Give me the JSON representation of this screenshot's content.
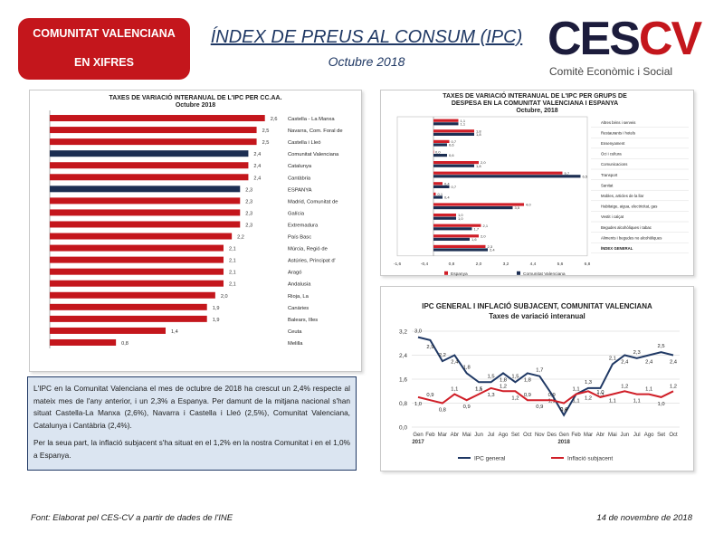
{
  "header": {
    "badge_line1": "COMUNITAT VALENCIANA",
    "badge_line2": "EN XIFRES",
    "title": "ÍNDEX DE PREUS AL CONSUM (IPC)",
    "subtitle": "Octubre 2018",
    "logo_ces": "CES",
    "logo_cv": "CV",
    "logo_tagline": "Comitè Econòmic i Social"
  },
  "colors": {
    "brand_red": "#c4161c",
    "navy": "#1c2e52",
    "blue_line": "#1f3864",
    "red_line": "#d01f28"
  },
  "chart_data": [
    {
      "type": "bar",
      "orientation": "horizontal",
      "title": "TAXES DE VARIACIÓ INTERANUAL DE L'IPC PER CC.AA.",
      "subtitle": "Octubre 2018",
      "categories": [
        "Castella - La Manxa",
        "Navarra, Com. Foral de",
        "Castella i Lleó",
        "Comunitat Valenciana",
        "Catalunya",
        "Cantàbria",
        "ESPANYA",
        "Madrid, Comunitat de",
        "Galícia",
        "Extremadura",
        "País Basc",
        "Múrcia, Regió de",
        "Astúries, Principat d'",
        "Aragó",
        "Andalusia",
        "Rioja, La",
        "Canàries",
        "Balears, Illes",
        "Ceuta",
        "Melilla"
      ],
      "values": [
        2.6,
        2.5,
        2.5,
        2.4,
        2.4,
        2.4,
        2.3,
        2.3,
        2.3,
        2.3,
        2.2,
        2.1,
        2.1,
        2.1,
        2.1,
        2.0,
        1.9,
        1.9,
        1.4,
        0.8
      ],
      "value_labels": [
        "2,6",
        "2,5",
        "2,5",
        "2,4",
        "2,4",
        "2,4",
        "2,3",
        "2,3",
        "2,3",
        "2,3",
        "2,2",
        "2,1",
        "2,1",
        "2,1",
        "2,1",
        "2,0",
        "1,9",
        "1,9",
        "1,4",
        "0,8"
      ],
      "highlight": [
        "Comunitat Valenciana",
        "ESPANYA"
      ],
      "xlim": [
        0,
        2.8
      ]
    },
    {
      "type": "bar",
      "orientation": "horizontal",
      "title": "TAXES DE VARIACIÓ INTERANUAL DE L'IPC PER GRUPS DE DESPESA EN LA COMUNITAT VALENCIANA I ESPANYA",
      "subtitle": "Octubre, 2018",
      "categories": [
        "Altres béns i serveis",
        "Restaurants i hotels",
        "Ensenyament",
        "Oci i cultura",
        "Comunicacions",
        "Transport",
        "Sanitat",
        "Mobles, articles de la llar",
        "Habitatge, aigua, electricitat, gas",
        "Vestit i calçat",
        "Begudes alcohòliques i tabac",
        "Aliments i begudes no alcohòliques",
        "ÍNDEX GENERAL"
      ],
      "series": [
        {
          "name": "Espanya",
          "color": "#d01f28",
          "values": [
            1.1,
            1.8,
            0.7,
            0.0,
            2.0,
            5.7,
            0.4,
            0.1,
            4.0,
            1.0,
            2.1,
            2.0,
            2.3
          ],
          "labels": [
            "1,1",
            "1,8",
            "0,7",
            "0,0",
            "2,0",
            "5,7",
            "0,4",
            "0,1",
            "4,0",
            "1,0",
            "2,1",
            "2,0",
            "2,3"
          ]
        },
        {
          "name": "Comunitat Valenciana",
          "color": "#1c2e52",
          "values": [
            1.1,
            1.8,
            0.6,
            0.6,
            1.8,
            6.5,
            0.7,
            0.4,
            3.5,
            1.0,
            1.7,
            1.6,
            2.4
          ],
          "labels": [
            "1,1",
            "1,8",
            "0,6",
            "0,6",
            "1,8",
            "6,5",
            "0,7",
            "0,4",
            "3,5",
            "1,0",
            "1,7",
            "1,6",
            "2,4"
          ]
        }
      ],
      "xticks": [
        "-1,6",
        "-0,4",
        "0,8",
        "2,0",
        "3,2",
        "4,4",
        "5,6",
        "6,8"
      ],
      "xlim": [
        -1.6,
        6.8
      ]
    },
    {
      "type": "line",
      "title": "IPC GENERAL I INFLACIÓ SUBJACENT, COMUNITAT VALENCIANA",
      "subtitle": "Taxes de variació interanual",
      "x": [
        "Gen",
        "Feb",
        "Mar",
        "Abr",
        "Mai",
        "Jun",
        "Jul",
        "Ago",
        "Set",
        "Oct",
        "Nov",
        "Des",
        "Gen",
        "Feb",
        "Mar",
        "Abr",
        "Mai",
        "Jun",
        "Jul",
        "Ago",
        "Set",
        "Oct"
      ],
      "year_labels": [
        "2017",
        "2018"
      ],
      "yticks": [
        "0,0",
        "0,8",
        "1,6",
        "2,4",
        "3,2"
      ],
      "ylim": [
        0,
        3.2
      ],
      "series": [
        {
          "name": "IPC general",
          "color": "#1f3864",
          "values": [
            3.0,
            2.9,
            2.2,
            2.4,
            1.8,
            1.5,
            1.5,
            1.8,
            1.5,
            1.8,
            1.7,
            1.1,
            0.4,
            1.1,
            1.3,
            1.3,
            2.1,
            2.4,
            2.3,
            2.4,
            2.5,
            2.4
          ],
          "labels": [
            "3,0",
            "2,9",
            "2,2",
            "2,4",
            "1,8",
            "1,5",
            "1,5",
            "1,8",
            "1,5",
            "1,8",
            "1,7",
            "1,1",
            "0,4",
            "1,1",
            "1,3",
            "1,3",
            "2,1",
            "2,4",
            "2,3",
            "2,4",
            "2,5",
            "2,4"
          ]
        },
        {
          "name": "Inflació subjacent",
          "color": "#d01f28",
          "values": [
            1.0,
            0.9,
            0.8,
            1.1,
            0.9,
            1.1,
            1.3,
            1.2,
            1.2,
            0.9,
            0.9,
            0.9,
            0.8,
            1.1,
            1.2,
            1.0,
            1.1,
            1.2,
            1.1,
            1.1,
            1.0,
            1.2
          ],
          "labels": [
            "1,0",
            "0,9",
            "0,8",
            "1,1",
            "0,9",
            "1,1",
            "1,3",
            "1,2",
            "1,2",
            "0,9",
            "0,9",
            "0,9",
            "0,8",
            "1,1",
            "1,2",
            "1,0",
            "1,1",
            "1,2",
            "1,1",
            "1,1",
            "1,0",
            "1,2"
          ]
        }
      ]
    }
  ],
  "text_block": {
    "paragraph1": "L'IPC en la Comunitat Valenciana el mes de octubre de 2018 ha crescut un 2,4% respecte al mateix mes de l'any anterior, i un 2,3% a Espanya. Per damunt de la mitjana nacional s'han situat Castella-La Manxa (2,6%), Navarra i Castella i Lleó (2,5%), Comunitat Valenciana, Catalunya i Cantàbria (2,4%).",
    "paragraph2": "Per la seua part, la inflació subjacent s'ha situat en el 1,2% en la nostra Comunitat i en el 1,0% a Espanya."
  },
  "footer": {
    "source": "Font: Elaborat pel CES-CV a partir de dades de l'INE",
    "date": "14 de novembre de 2018"
  }
}
